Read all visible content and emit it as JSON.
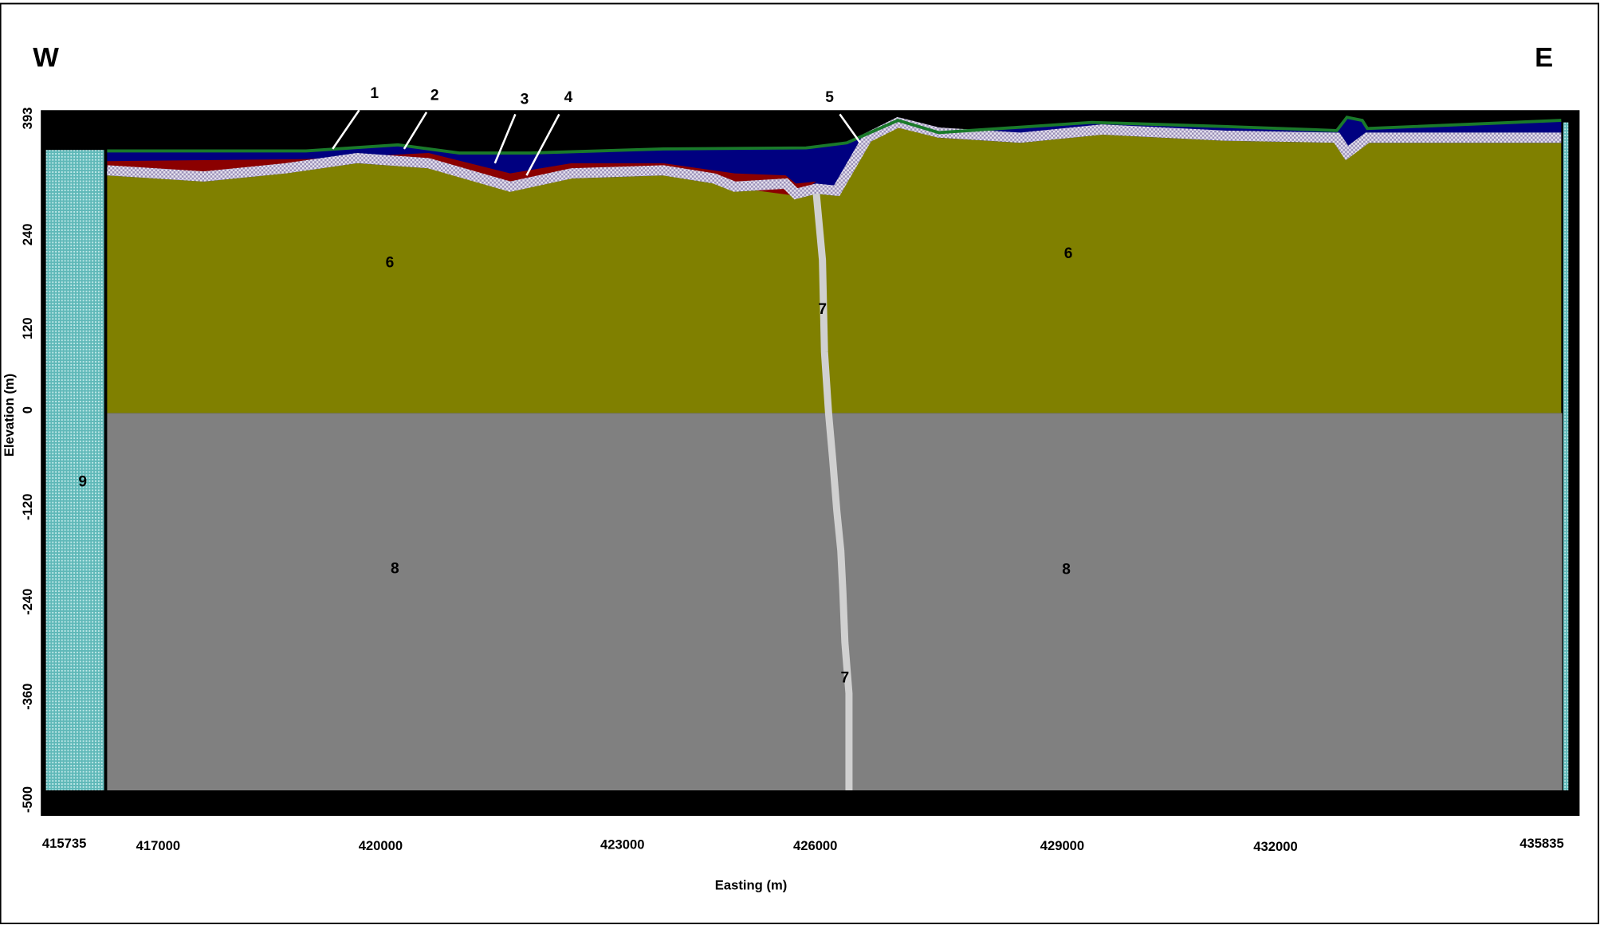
{
  "header": {
    "west": "W",
    "east": "E"
  },
  "axes": {
    "x_label": "Easting (m)",
    "y_label": "Elevation (m)",
    "x_ticks": [
      "415735",
      "417000",
      "420000",
      "423000",
      "426000",
      "429000",
      "432000",
      "435835"
    ],
    "y_ticks": [
      "393",
      "240",
      "120",
      "0",
      "-120",
      "-240",
      "-360",
      "-500"
    ]
  },
  "callouts": [
    "1",
    "2",
    "3",
    "4",
    "5"
  ],
  "units": [
    "6",
    "6",
    "7",
    "7",
    "8",
    "8",
    "9"
  ]
}
